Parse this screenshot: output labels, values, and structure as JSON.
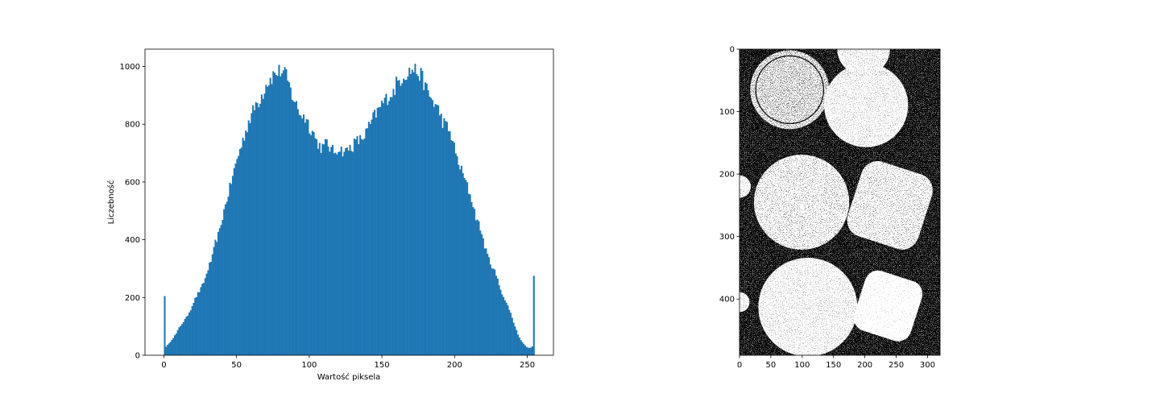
{
  "chart_data": [
    {
      "type": "bar",
      "subtype": "histogram",
      "title": "",
      "xlabel": "Wartość piksela",
      "ylabel": "Liczebność",
      "xlim": [
        -13,
        268
      ],
      "ylim": [
        0,
        1060
      ],
      "xticks": [
        0,
        50,
        100,
        150,
        200,
        250
      ],
      "yticks": [
        0,
        200,
        400,
        600,
        800,
        1000
      ],
      "grid": false,
      "legend": "none",
      "bar_color": "#1f77b4",
      "bins": 256,
      "anchors": [
        [
          0,
          205
        ],
        [
          1,
          30
        ],
        [
          3,
          40
        ],
        [
          5,
          55
        ],
        [
          8,
          75
        ],
        [
          10,
          95
        ],
        [
          12,
          110
        ],
        [
          15,
          130
        ],
        [
          18,
          160
        ],
        [
          20,
          185
        ],
        [
          22,
          205
        ],
        [
          25,
          230
        ],
        [
          28,
          265
        ],
        [
          30,
          300
        ],
        [
          33,
          340
        ],
        [
          35,
          390
        ],
        [
          38,
          430
        ],
        [
          40,
          480
        ],
        [
          43,
          540
        ],
        [
          45,
          580
        ],
        [
          48,
          640
        ],
        [
          50,
          680
        ],
        [
          52,
          710
        ],
        [
          55,
          760
        ],
        [
          58,
          810
        ],
        [
          60,
          830
        ],
        [
          63,
          870
        ],
        [
          65,
          880
        ],
        [
          68,
          910
        ],
        [
          70,
          940
        ],
        [
          72,
          950
        ],
        [
          75,
          970
        ],
        [
          78,
          980
        ],
        [
          80,
          985
        ],
        [
          83,
          975
        ],
        [
          85,
          950
        ],
        [
          88,
          900
        ],
        [
          90,
          880
        ],
        [
          92,
          850
        ],
        [
          95,
          830
        ],
        [
          98,
          820
        ],
        [
          100,
          790
        ],
        [
          102,
          780
        ],
        [
          105,
          740
        ],
        [
          108,
          720
        ],
        [
          110,
          720
        ],
        [
          112,
          740
        ],
        [
          115,
          710
        ],
        [
          118,
          705
        ],
        [
          120,
          720
        ],
        [
          122,
          710
        ],
        [
          125,
          705
        ],
        [
          128,
          720
        ],
        [
          130,
          725
        ],
        [
          132,
          740
        ],
        [
          135,
          745
        ],
        [
          138,
          760
        ],
        [
          140,
          780
        ],
        [
          142,
          800
        ],
        [
          145,
          830
        ],
        [
          148,
          850
        ],
        [
          150,
          870
        ],
        [
          152,
          880
        ],
        [
          155,
          900
        ],
        [
          158,
          910
        ],
        [
          160,
          940
        ],
        [
          162,
          950
        ],
        [
          165,
          970
        ],
        [
          168,
          980
        ],
        [
          170,
          985
        ],
        [
          172,
          990
        ],
        [
          175,
          980
        ],
        [
          178,
          960
        ],
        [
          180,
          930
        ],
        [
          182,
          910
        ],
        [
          185,
          880
        ],
        [
          188,
          860
        ],
        [
          190,
          840
        ],
        [
          192,
          810
        ],
        [
          195,
          790
        ],
        [
          198,
          760
        ],
        [
          200,
          720
        ],
        [
          202,
          680
        ],
        [
          205,
          640
        ],
        [
          208,
          600
        ],
        [
          210,
          570
        ],
        [
          212,
          540
        ],
        [
          215,
          480
        ],
        [
          218,
          440
        ],
        [
          220,
          400
        ],
        [
          222,
          360
        ],
        [
          225,
          320
        ],
        [
          228,
          290
        ],
        [
          230,
          260
        ],
        [
          232,
          230
        ],
        [
          235,
          190
        ],
        [
          238,
          160
        ],
        [
          240,
          130
        ],
        [
          242,
          100
        ],
        [
          245,
          60
        ],
        [
          248,
          40
        ],
        [
          250,
          28
        ],
        [
          252,
          25
        ],
        [
          254,
          30
        ],
        [
          255,
          275
        ]
      ]
    },
    {
      "type": "image",
      "description_of_content": "binary thresholded image of coins",
      "xlim": [
        0,
        320
      ],
      "ylim": [
        490,
        0
      ],
      "xticks": [
        0,
        50,
        100,
        150,
        200,
        250,
        300
      ],
      "yticks": [
        0,
        100,
        200,
        300,
        400
      ],
      "foreground_color": "#ffffff",
      "background_color": "#000000",
      "objects": [
        {
          "shape": "circle",
          "cx": 80,
          "cy": 65,
          "r": 63,
          "texture": "dense"
        },
        {
          "shape": "circle",
          "cx": 202,
          "cy": 90,
          "r": 67,
          "texture": "light"
        },
        {
          "shape": "circle",
          "cx": 198,
          "cy": 0,
          "r": 42,
          "texture": "light"
        },
        {
          "shape": "circle",
          "cx": 0,
          "cy": 220,
          "r": 18,
          "texture": "light"
        },
        {
          "shape": "circle",
          "cx": 99,
          "cy": 245,
          "r": 76,
          "texture": "medium"
        },
        {
          "shape": "rounded-square",
          "cx": 240,
          "cy": 250,
          "w": 118,
          "h": 125,
          "texture": "dense"
        },
        {
          "shape": "circle",
          "cx": 109,
          "cy": 413,
          "r": 79,
          "texture": "light"
        },
        {
          "shape": "rounded-square",
          "cx": 237,
          "cy": 411,
          "w": 95,
          "h": 100,
          "texture": "light"
        },
        {
          "shape": "circle",
          "cx": 0,
          "cy": 405,
          "r": 16,
          "texture": "light"
        }
      ]
    }
  ]
}
